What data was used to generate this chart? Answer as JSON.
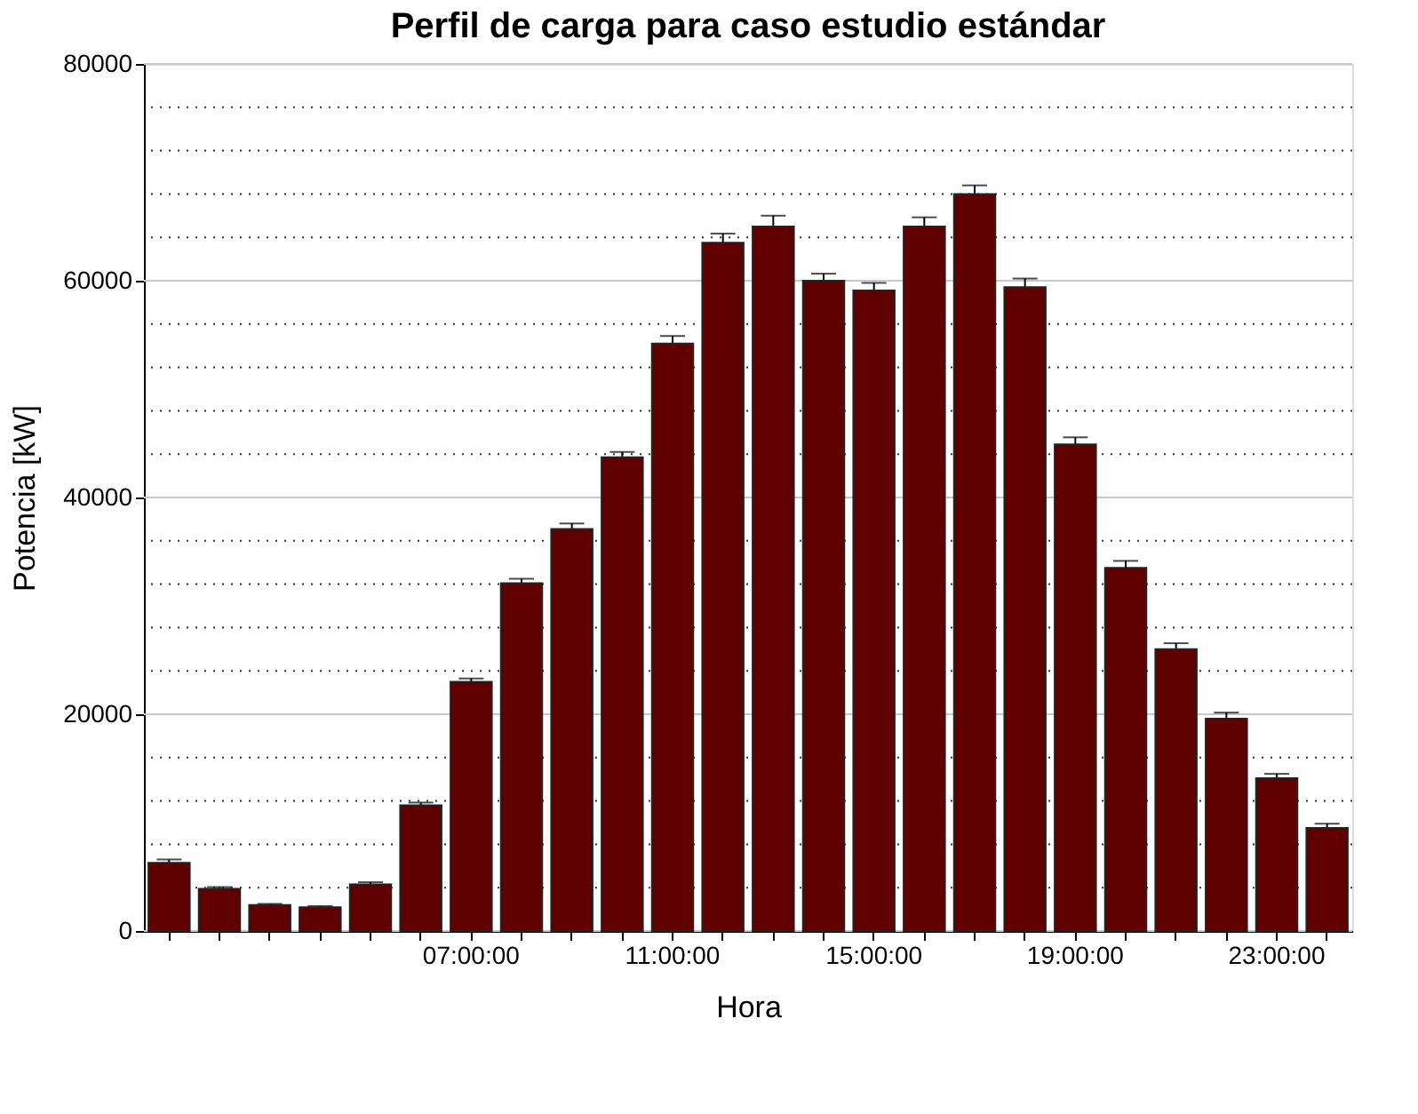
{
  "chart_data": {
    "type": "bar",
    "title": "Perfil de carga para caso estudio estándar",
    "xlabel": "Hora",
    "ylabel": "Potencia [kW]",
    "categories": [
      null,
      null,
      null,
      null,
      null,
      null,
      "07:00:00",
      null,
      null,
      null,
      "11:00:00",
      null,
      null,
      null,
      "15:00:00",
      null,
      null,
      null,
      "19:00:00",
      null,
      null,
      null,
      "23:00:00",
      null
    ],
    "values": [
      6300,
      3900,
      2400,
      2200,
      4300,
      11600,
      23000,
      32100,
      37100,
      43700,
      54200,
      63500,
      65000,
      60000,
      59100,
      65000,
      68000,
      59400,
      44900,
      33500,
      26000,
      19600,
      14100,
      9500
    ],
    "errors": [
      300,
      150,
      100,
      100,
      200,
      250,
      300,
      400,
      500,
      500,
      700,
      850,
      1000,
      650,
      700,
      850,
      800,
      800,
      650,
      650,
      550,
      550,
      400,
      400
    ],
    "color": "#600000",
    "ylim": [
      0,
      80000
    ],
    "yticks": [
      0,
      {
        "value": 4000,
        "label": null
      },
      {
        "value": 8000,
        "label": null
      },
      {
        "value": 12000,
        "label": null
      },
      {
        "value": 16000,
        "label": null
      },
      20000,
      {
        "value": 24000,
        "label": null
      },
      {
        "value": 28000,
        "label": null
      },
      {
        "value": 32000,
        "label": null
      },
      {
        "value": 36000,
        "label": null
      },
      40000,
      {
        "value": 44000,
        "label": null
      },
      {
        "value": 48000,
        "label": null
      },
      {
        "value": 52000,
        "label": null
      },
      {
        "value": 56000,
        "label": null
      },
      60000,
      {
        "value": 64000,
        "label": null
      },
      {
        "value": 68000,
        "label": null
      },
      {
        "value": 72000,
        "label": null
      },
      {
        "value": 76000,
        "label": null
      },
      80000
    ],
    "grid": "y"
  }
}
